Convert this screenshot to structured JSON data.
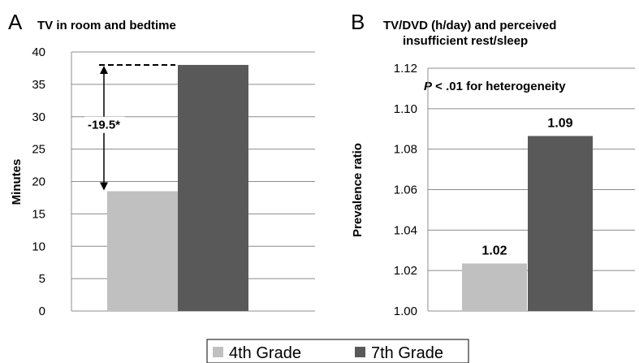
{
  "chart_data": [
    {
      "type": "bar",
      "panel": "A",
      "title": "TV in room and bedtime",
      "ylabel": "Minutes",
      "xlabel": "",
      "ylim": [
        0,
        40
      ],
      "yticks": [
        "0",
        "5",
        "10",
        "15",
        "20",
        "25",
        "30",
        "35",
        "40"
      ],
      "grid": true,
      "categories": [
        "4th Grade",
        "7th Grade"
      ],
      "values": [
        18.5,
        38.0
      ],
      "annotation": "-19.5*"
    },
    {
      "type": "bar",
      "panel": "B",
      "title_line1": "TV/DVD (h/day) and perceived",
      "title_line2": "insufficient rest/sleep",
      "ylabel": "Prevalence ratio",
      "xlabel": "",
      "ylim": [
        1.0,
        1.12
      ],
      "yticks": [
        "1.00",
        "1.02",
        "1.04",
        "1.06",
        "1.08",
        "1.10",
        "1.12"
      ],
      "grid": true,
      "categories": [
        "4th Grade",
        "7th Grade"
      ],
      "values": [
        1.0235,
        1.0865
      ],
      "data_labels": [
        "1.02",
        "1.09"
      ],
      "annotation_italic": "P",
      "annotation_rest": " < .01 for heterogeneity"
    }
  ],
  "legend": {
    "items": [
      {
        "label": "4th Grade",
        "color": "#c0c0c0"
      },
      {
        "label": "7th Grade",
        "color": "#595959"
      }
    ],
    "placement": "bottom"
  },
  "colors": {
    "grade4": "#c0c0c0",
    "grade7": "#595959"
  }
}
